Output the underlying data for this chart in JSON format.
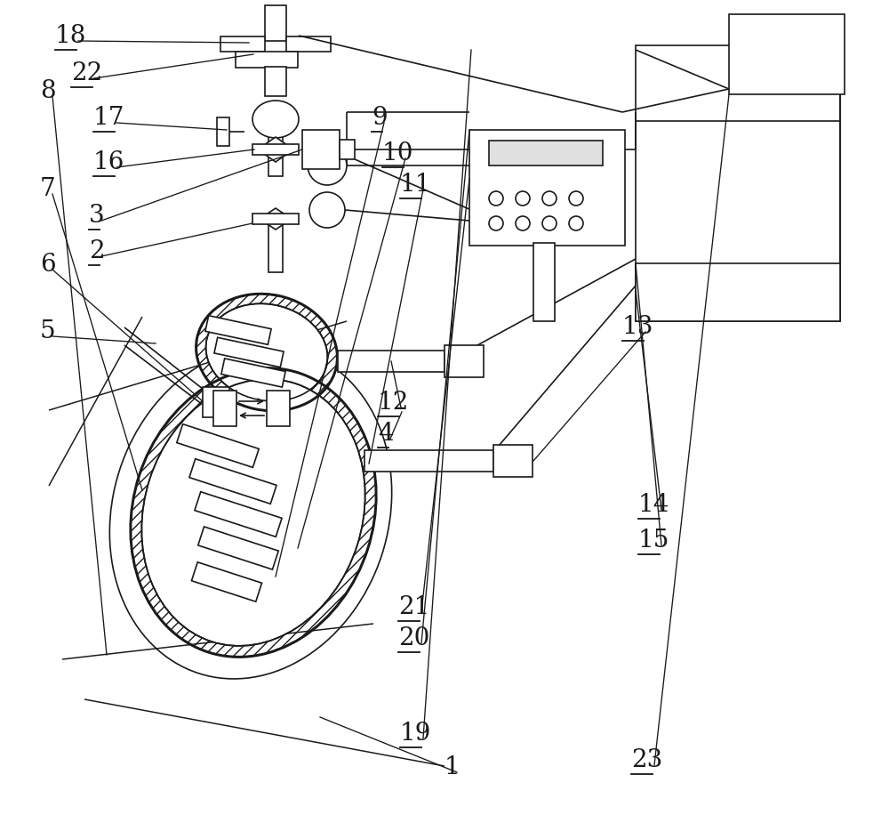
{
  "bg_color": "#ffffff",
  "line_color": "#1a1a1a",
  "lw": 1.2,
  "fig_width": 10.0,
  "fig_height": 9.16
}
